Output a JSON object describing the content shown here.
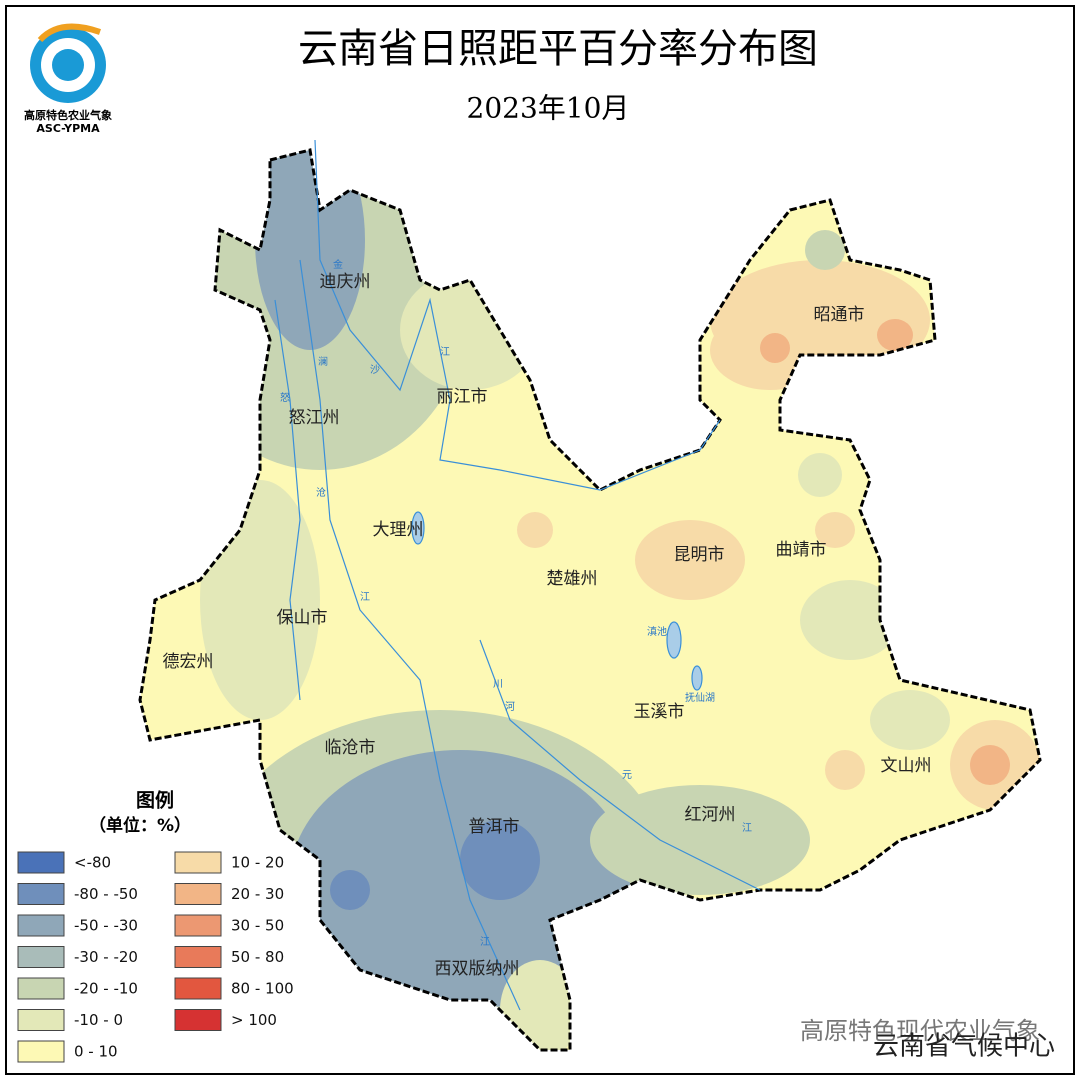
{
  "header": {
    "title": "云南省日照距平百分率分布图",
    "subtitle": "2023年10月"
  },
  "logo": {
    "name": "高原特色农业气象",
    "abbr": "ASC-YPMA"
  },
  "places": [
    "迪庆州",
    "怒江州",
    "丽江市",
    "大理州",
    "保山市",
    "德宏州",
    "临沧市",
    "楚雄州",
    "昆明市",
    "曲靖市",
    "昭通市",
    "玉溪市",
    "普洱市",
    "红河州",
    "文山州",
    "西双版纳州"
  ],
  "lakes": [
    "滇池",
    "抚仙湖"
  ],
  "rivers": [
    "金",
    "沙",
    "江",
    "澜",
    "沧",
    "怒",
    "江",
    "元",
    "川",
    "河",
    "江",
    "江"
  ],
  "legend": {
    "title": "图例",
    "unit": "（单位：%）",
    "items": [
      {
        "label": "<-80",
        "color": "#4a72b8"
      },
      {
        "label": "-80 - -50",
        "color": "#6f8fbb"
      },
      {
        "label": "-50 - -30",
        "color": "#8fa7b8"
      },
      {
        "label": "-30 - -20",
        "color": "#a9bcb9"
      },
      {
        "label": "-20 - -10",
        "color": "#c8d5b2"
      },
      {
        "label": "-10 - 0",
        "color": "#e3e8b8"
      },
      {
        "label": "0 - 10",
        "color": "#fdf9b5"
      },
      {
        "label": "10 - 20",
        "color": "#f7dba8"
      },
      {
        "label": "20 - 30",
        "color": "#f2b586"
      },
      {
        "label": "30 - 50",
        "color": "#ec9872"
      },
      {
        "label": "50 - 80",
        "color": "#e87a5a"
      },
      {
        "label": "80 - 100",
        "color": "#e2573f"
      },
      {
        "label": "> 100",
        "color": "#d63232"
      }
    ]
  },
  "footer": {
    "watermark": "高原特色现代农业气象",
    "credit": "云南省气候中心"
  }
}
